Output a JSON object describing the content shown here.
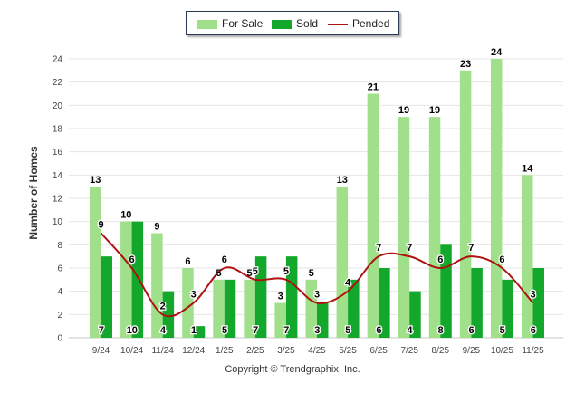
{
  "chart_data": {
    "type": "bar",
    "categories": [
      "9/24",
      "10/24",
      "11/24",
      "12/24",
      "1/25",
      "2/25",
      "3/25",
      "4/25",
      "5/25",
      "6/25",
      "7/25",
      "8/25",
      "9/25",
      "10/25",
      "11/25"
    ],
    "series": [
      {
        "name": "For Sale",
        "type": "bar",
        "color": "#a0e08a",
        "values": [
          13,
          10,
          9,
          6,
          5,
          5,
          3,
          5,
          13,
          21,
          19,
          19,
          23,
          24,
          14
        ]
      },
      {
        "name": "Sold",
        "type": "bar",
        "color": "#13a82c",
        "values": [
          7,
          10,
          4,
          1,
          5,
          7,
          7,
          3,
          5,
          6,
          4,
          8,
          6,
          5,
          6
        ]
      },
      {
        "name": "Pended",
        "type": "line",
        "color": "#b01010",
        "values": [
          9,
          6,
          2,
          3,
          6,
          5,
          5,
          3,
          4,
          7,
          7,
          6,
          7,
          6,
          3
        ]
      }
    ],
    "ylabel": "Number of Homes",
    "xlabel": "",
    "ylim": [
      0,
      24
    ],
    "yticks": [
      0,
      2,
      4,
      6,
      8,
      10,
      12,
      14,
      16,
      18,
      20,
      22,
      24
    ],
    "grid": true,
    "legend_position": "top-center"
  },
  "legend": {
    "for_sale": "For Sale",
    "sold": "Sold",
    "pended": "Pended"
  },
  "footer": "Copyright © Trendgraphix, Inc."
}
